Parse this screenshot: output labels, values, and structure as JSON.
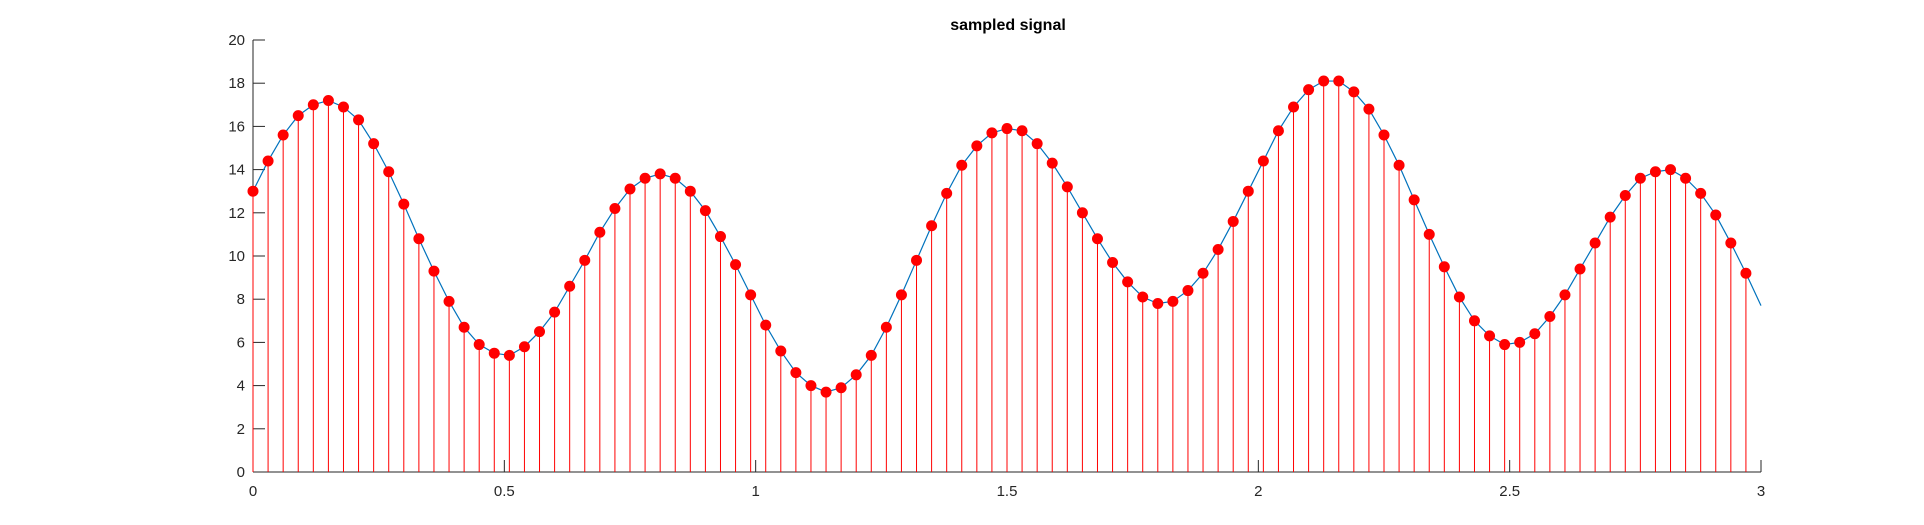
{
  "chart_data": {
    "type": "line",
    "title": "sampled signal",
    "xlabel": "",
    "ylabel": "",
    "xlim": [
      0,
      3
    ],
    "ylim": [
      0,
      20
    ],
    "xticks": [
      0,
      0.5,
      1,
      1.5,
      2,
      2.5,
      3
    ],
    "xtick_labels": [
      "0",
      "0.5",
      "1",
      "1.5",
      "2",
      "2.5",
      "3"
    ],
    "yticks": [
      0,
      2,
      4,
      6,
      8,
      10,
      12,
      14,
      16,
      18,
      20
    ],
    "ytick_labels": [
      "0",
      "2",
      "4",
      "6",
      "8",
      "10",
      "12",
      "14",
      "16",
      "18",
      "20"
    ],
    "grid": false,
    "series": [
      {
        "kind": "continuous-line",
        "color": "#0072BD",
        "x": [
          0,
          0.03,
          0.06,
          0.09,
          0.12,
          0.15,
          0.18,
          0.21,
          0.24,
          0.27,
          0.3,
          0.33,
          0.36,
          0.39,
          0.42,
          0.45,
          0.48,
          0.51,
          0.54,
          0.57,
          0.6,
          0.63,
          0.66,
          0.69,
          0.72,
          0.75,
          0.78,
          0.81,
          0.84,
          0.87,
          0.9,
          0.93,
          0.96,
          0.99,
          1.02,
          1.05,
          1.08,
          1.11,
          1.14,
          1.17,
          1.2,
          1.23,
          1.26,
          1.29,
          1.32,
          1.35,
          1.38,
          1.41,
          1.44,
          1.47,
          1.5,
          1.53,
          1.56,
          1.59,
          1.62,
          1.65,
          1.68,
          1.71,
          1.74,
          1.77,
          1.8,
          1.83,
          1.86,
          1.89,
          1.92,
          1.95,
          1.98,
          2.01,
          2.04,
          2.07,
          2.1,
          2.13,
          2.16,
          2.19,
          2.22,
          2.25,
          2.28,
          2.31,
          2.34,
          2.37,
          2.4,
          2.43,
          2.46,
          2.49,
          2.52,
          2.55,
          2.58,
          2.61,
          2.64,
          2.67,
          2.7,
          2.73,
          2.76,
          2.79,
          2.82,
          2.85,
          2.88,
          2.91,
          2.94,
          2.97,
          3.0
        ],
        "y": [
          13.0,
          14.4,
          15.6,
          16.5,
          17.0,
          17.2,
          16.9,
          16.3,
          15.2,
          13.9,
          12.4,
          10.8,
          9.3,
          7.9,
          6.7,
          5.9,
          5.5,
          5.4,
          5.8,
          6.5,
          7.4,
          8.6,
          9.8,
          11.1,
          12.2,
          13.1,
          13.6,
          13.8,
          13.6,
          13.0,
          12.1,
          10.9,
          9.6,
          8.2,
          6.8,
          5.6,
          4.6,
          4.0,
          3.7,
          3.9,
          4.5,
          5.4,
          6.7,
          8.2,
          9.8,
          11.4,
          12.9,
          14.2,
          15.1,
          15.7,
          15.9,
          15.8,
          15.2,
          14.3,
          13.2,
          12.0,
          10.8,
          9.7,
          8.8,
          8.1,
          7.8,
          7.9,
          8.4,
          9.2,
          10.3,
          11.6,
          13.0,
          14.4,
          15.8,
          16.9,
          17.7,
          18.1,
          18.1,
          17.6,
          16.8,
          15.6,
          14.2,
          12.6,
          11.0,
          9.5,
          8.1,
          7.0,
          6.3,
          5.9,
          6.0,
          6.4,
          7.2,
          8.2,
          9.4,
          10.6,
          11.8,
          12.8,
          13.6,
          13.9,
          14.0,
          13.6,
          12.9,
          11.9,
          10.6,
          9.2,
          7.7
        ]
      },
      {
        "kind": "stem",
        "color": "#FF0000",
        "marker": "filled-circle",
        "x": [
          0,
          0.03,
          0.06,
          0.09,
          0.12,
          0.15,
          0.18,
          0.21,
          0.24,
          0.27,
          0.3,
          0.33,
          0.36,
          0.39,
          0.42,
          0.45,
          0.48,
          0.51,
          0.54,
          0.57,
          0.6,
          0.63,
          0.66,
          0.69,
          0.72,
          0.75,
          0.78,
          0.81,
          0.84,
          0.87,
          0.9,
          0.93,
          0.96,
          0.99,
          1.02,
          1.05,
          1.08,
          1.11,
          1.14,
          1.17,
          1.2,
          1.23,
          1.26,
          1.29,
          1.32,
          1.35,
          1.38,
          1.41,
          1.44,
          1.47,
          1.5,
          1.53,
          1.56,
          1.59,
          1.62,
          1.65,
          1.68,
          1.71,
          1.74,
          1.77,
          1.8,
          1.83,
          1.86,
          1.89,
          1.92,
          1.95,
          1.98,
          2.01,
          2.04,
          2.07,
          2.1,
          2.13,
          2.16,
          2.19,
          2.22,
          2.25,
          2.28,
          2.31,
          2.34,
          2.37,
          2.4,
          2.43,
          2.46,
          2.49,
          2.52,
          2.55,
          2.58,
          2.61,
          2.64,
          2.67,
          2.7,
          2.73,
          2.76,
          2.79,
          2.82,
          2.85,
          2.88,
          2.91,
          2.94,
          2.97
        ],
        "y": [
          13.0,
          14.4,
          15.6,
          16.5,
          17.0,
          17.2,
          16.9,
          16.3,
          15.2,
          13.9,
          12.4,
          10.8,
          9.3,
          7.9,
          6.7,
          5.9,
          5.5,
          5.4,
          5.8,
          6.5,
          7.4,
          8.6,
          9.8,
          11.1,
          12.2,
          13.1,
          13.6,
          13.8,
          13.6,
          13.0,
          12.1,
          10.9,
          9.6,
          8.2,
          6.8,
          5.6,
          4.6,
          4.0,
          3.7,
          3.9,
          4.5,
          5.4,
          6.7,
          8.2,
          9.8,
          11.4,
          12.9,
          14.2,
          15.1,
          15.7,
          15.9,
          15.8,
          15.2,
          14.3,
          13.2,
          12.0,
          10.8,
          9.7,
          8.8,
          8.1,
          7.8,
          7.9,
          8.4,
          9.2,
          10.3,
          11.6,
          13.0,
          14.4,
          15.8,
          16.9,
          17.7,
          18.1,
          18.1,
          17.6,
          16.8,
          15.6,
          14.2,
          12.6,
          11.0,
          9.5,
          8.1,
          7.0,
          6.3,
          5.9,
          6.0,
          6.4,
          7.2,
          8.2,
          9.4,
          10.6,
          11.8,
          12.8,
          13.6,
          13.9,
          14.0,
          13.6,
          12.9,
          11.9,
          10.6,
          9.2
        ]
      }
    ]
  }
}
